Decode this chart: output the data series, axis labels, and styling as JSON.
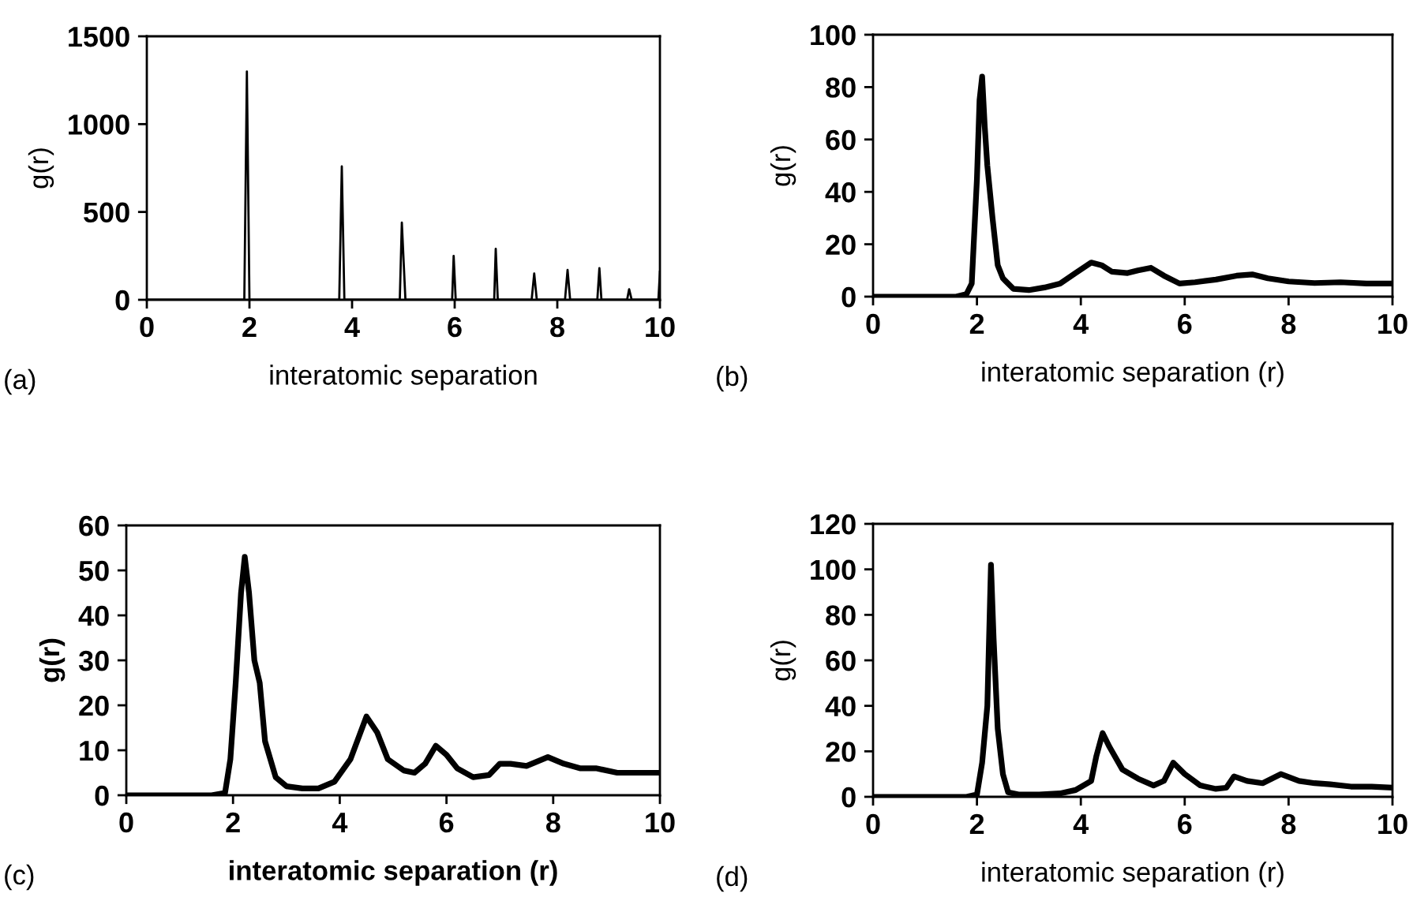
{
  "chart_data": [
    {
      "type": "line",
      "xlabel": "interatomic separation",
      "ylabel": "g(r)",
      "annotations": [
        "(a)"
      ],
      "xlim": [
        0,
        10
      ],
      "ylim": [
        0,
        1500
      ],
      "xticks": [
        0,
        2,
        4,
        6,
        8,
        10
      ],
      "yticks": [
        0,
        500,
        1000,
        1500
      ],
      "grid": false,
      "marker": "none",
      "line_style": "solid",
      "series": [
        {
          "color": "#000000",
          "x": [
            0,
            1.9,
            1.95,
            2.0,
            3.75,
            3.8,
            3.85,
            4.93,
            4.97,
            5.0,
            5.04,
            5.95,
            5.98,
            6.02,
            6.77,
            6.8,
            6.84,
            7.5,
            7.55,
            7.6,
            8.15,
            8.2,
            8.25,
            8.78,
            8.82,
            8.86,
            9.36,
            9.4,
            9.45,
            9.97,
            10
          ],
          "values": [
            0,
            0,
            1300,
            0,
            0,
            760,
            0,
            0,
            440,
            250,
            0,
            0,
            250,
            0,
            0,
            290,
            0,
            0,
            150,
            0,
            0,
            170,
            0,
            0,
            180,
            0,
            0,
            60,
            0,
            0,
            160
          ]
        }
      ]
    },
    {
      "type": "line",
      "xlabel": "interatomic separation (r)",
      "ylabel": "g(r)",
      "annotations": [
        "(b)"
      ],
      "xlim": [
        0,
        10
      ],
      "ylim": [
        0,
        100
      ],
      "xticks": [
        0,
        2,
        4,
        6,
        8,
        10
      ],
      "yticks": [
        0,
        20,
        40,
        60,
        80,
        100
      ],
      "grid": false,
      "marker": "none",
      "line_style": "solid",
      "series": [
        {
          "color": "#000000",
          "x": [
            0,
            1.6,
            1.8,
            1.9,
            2.0,
            2.05,
            2.1,
            2.15,
            2.2,
            2.3,
            2.4,
            2.5,
            2.7,
            3.0,
            3.3,
            3.6,
            3.9,
            4.2,
            4.4,
            4.6,
            4.9,
            5.1,
            5.35,
            5.6,
            5.9,
            6.2,
            6.6,
            7.0,
            7.3,
            7.6,
            8.0,
            8.5,
            9.0,
            9.5,
            10
          ],
          "values": [
            0,
            0,
            1,
            5,
            45,
            75,
            84,
            65,
            50,
            30,
            12,
            7,
            3,
            2.5,
            3.5,
            5,
            9,
            13,
            12,
            9.5,
            9,
            10,
            11,
            8,
            5,
            5.5,
            6.5,
            8,
            8.5,
            7,
            5.8,
            5.2,
            5.5,
            5,
            5
          ]
        }
      ]
    },
    {
      "type": "line",
      "xlabel": "interatomic separation (r)",
      "ylabel": "g(r)",
      "annotations": [
        "(c)"
      ],
      "xlim": [
        0,
        10
      ],
      "ylim": [
        0,
        60
      ],
      "xticks": [
        0,
        2,
        4,
        6,
        8,
        10
      ],
      "yticks": [
        0,
        10,
        20,
        30,
        40,
        50,
        60
      ],
      "grid": false,
      "marker": "none",
      "line_style": "solid",
      "series": [
        {
          "color": "#000000",
          "x": [
            0,
            1.6,
            1.85,
            1.95,
            2.05,
            2.15,
            2.22,
            2.3,
            2.4,
            2.5,
            2.6,
            2.8,
            3.0,
            3.3,
            3.6,
            3.9,
            4.2,
            4.5,
            4.7,
            4.9,
            5.2,
            5.4,
            5.6,
            5.8,
            6.0,
            6.2,
            6.5,
            6.8,
            7.0,
            7.2,
            7.5,
            7.9,
            8.2,
            8.5,
            8.8,
            9.2,
            9.6,
            10
          ],
          "values": [
            0,
            0,
            0.5,
            8,
            25,
            45,
            53,
            45,
            30,
            25,
            12,
            4,
            2,
            1.5,
            1.5,
            3,
            8,
            17.5,
            14,
            8,
            5.5,
            5,
            7,
            11,
            9,
            6,
            4,
            4.5,
            7,
            7,
            6.5,
            8.5,
            7,
            6,
            6,
            5,
            5,
            5
          ]
        }
      ]
    },
    {
      "type": "line",
      "xlabel": "interatomic separation (r)",
      "ylabel": "g(r)",
      "annotations": [
        "(d)"
      ],
      "xlim": [
        0,
        10
      ],
      "ylim": [
        0,
        120
      ],
      "xticks": [
        0,
        2,
        4,
        6,
        8,
        10
      ],
      "yticks": [
        0,
        20,
        40,
        60,
        80,
        100,
        120
      ],
      "grid": false,
      "marker": "none",
      "line_style": "solid",
      "series": [
        {
          "color": "#000000",
          "x": [
            0,
            1.8,
            2.0,
            2.1,
            2.2,
            2.27,
            2.32,
            2.4,
            2.5,
            2.6,
            2.8,
            3.2,
            3.6,
            3.9,
            4.2,
            4.3,
            4.42,
            4.55,
            4.8,
            5.1,
            5.4,
            5.6,
            5.78,
            6.0,
            6.3,
            6.6,
            6.8,
            6.95,
            7.2,
            7.5,
            7.85,
            8.2,
            8.5,
            8.8,
            9.2,
            9.6,
            10
          ],
          "values": [
            0,
            0,
            1,
            15,
            40,
            102,
            70,
            30,
            10,
            2,
            1,
            1,
            1.5,
            3,
            7,
            18,
            28,
            22,
            12,
            8,
            5,
            7,
            15,
            10,
            5,
            3.5,
            4,
            9,
            7,
            6,
            10,
            7,
            6,
            5.5,
            4.5,
            4.5,
            4
          ]
        }
      ]
    }
  ]
}
